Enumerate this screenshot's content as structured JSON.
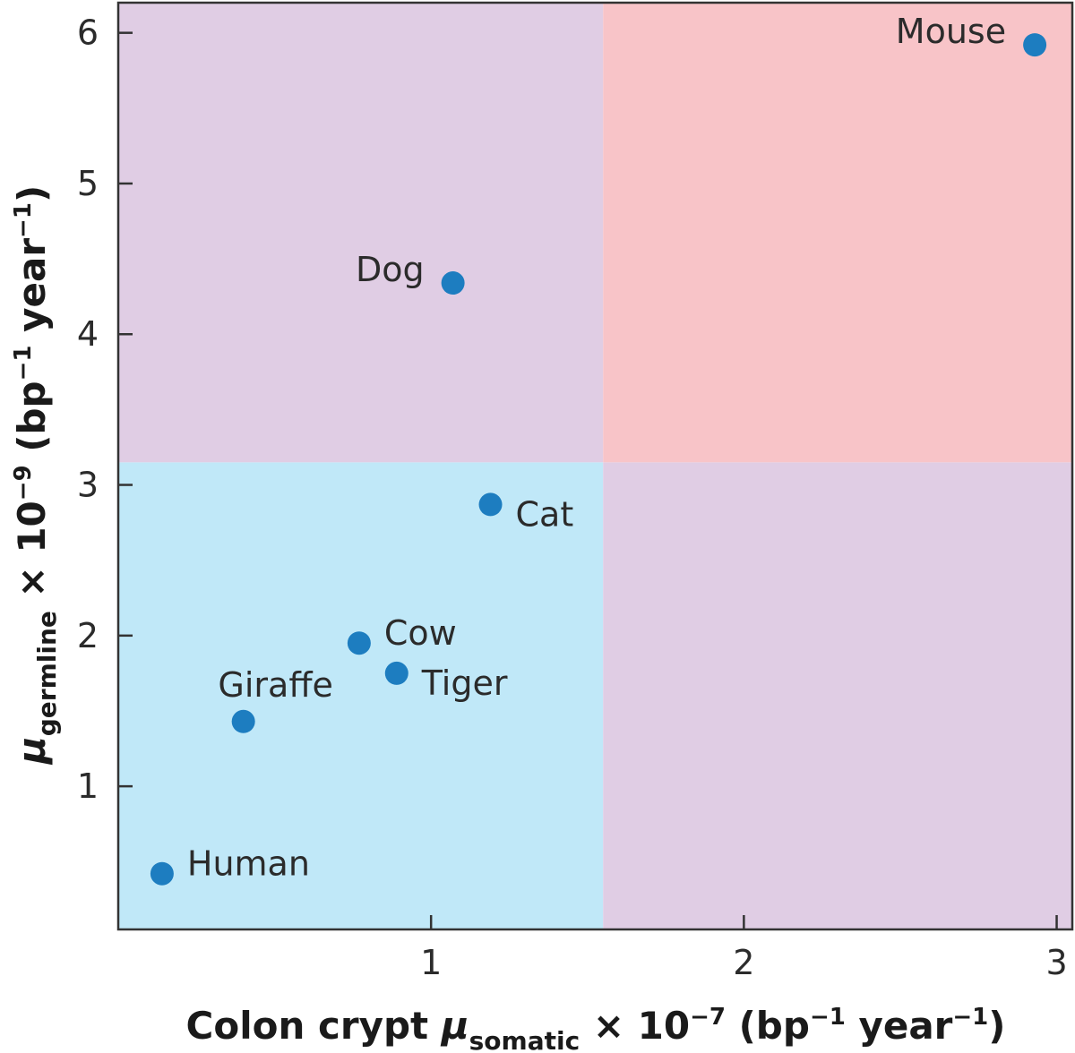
{
  "chart_data": {
    "type": "scatter",
    "xlabel": {
      "prefix": "Colon crypt ",
      "mu": "μ",
      "sub": "somatic",
      "times": " × 10",
      "exp": "−7",
      "unit_open": " (bp",
      "unit_exp1": "−1",
      "unit_mid": " year",
      "unit_exp2": "−1",
      "unit_close": ")"
    },
    "ylabel": {
      "mu": "μ",
      "sub": "germline",
      "times": " × 10",
      "exp": "−9",
      "unit_open": " (bp",
      "unit_exp1": "−1",
      "unit_mid": " year",
      "unit_exp2": "−1",
      "unit_close": ")"
    },
    "xlim": [
      0,
      3.05
    ],
    "ylim": [
      0.05,
      6.2
    ],
    "xticks": [
      1,
      2,
      3
    ],
    "yticks": [
      1,
      2,
      3,
      4,
      5,
      6
    ],
    "quadrants": {
      "x_split": 1.55,
      "y_split": 3.15,
      "colors": {
        "low_low": "#c0e8f8",
        "low_high": "#e0cde4",
        "high_low": "#e0cde4",
        "high_high": "#f8c4c8"
      }
    },
    "marker_color": "#1d7dc0",
    "points": [
      {
        "label": "Mouse",
        "x": 2.93,
        "y": 5.92,
        "label_pos": "left-up"
      },
      {
        "label": "Dog",
        "x": 1.07,
        "y": 4.34,
        "label_pos": "left-up"
      },
      {
        "label": "Cat",
        "x": 1.19,
        "y": 2.87,
        "label_pos": "right-down"
      },
      {
        "label": "Cow",
        "x": 0.77,
        "y": 1.95,
        "label_pos": "right-up"
      },
      {
        "label": "Tiger",
        "x": 0.89,
        "y": 1.75,
        "label_pos": "right-down"
      },
      {
        "label": "Giraffe",
        "x": 0.4,
        "y": 1.43,
        "label_pos": "above"
      },
      {
        "label": "Human",
        "x": 0.14,
        "y": 0.42,
        "label_pos": "right-up"
      }
    ]
  }
}
